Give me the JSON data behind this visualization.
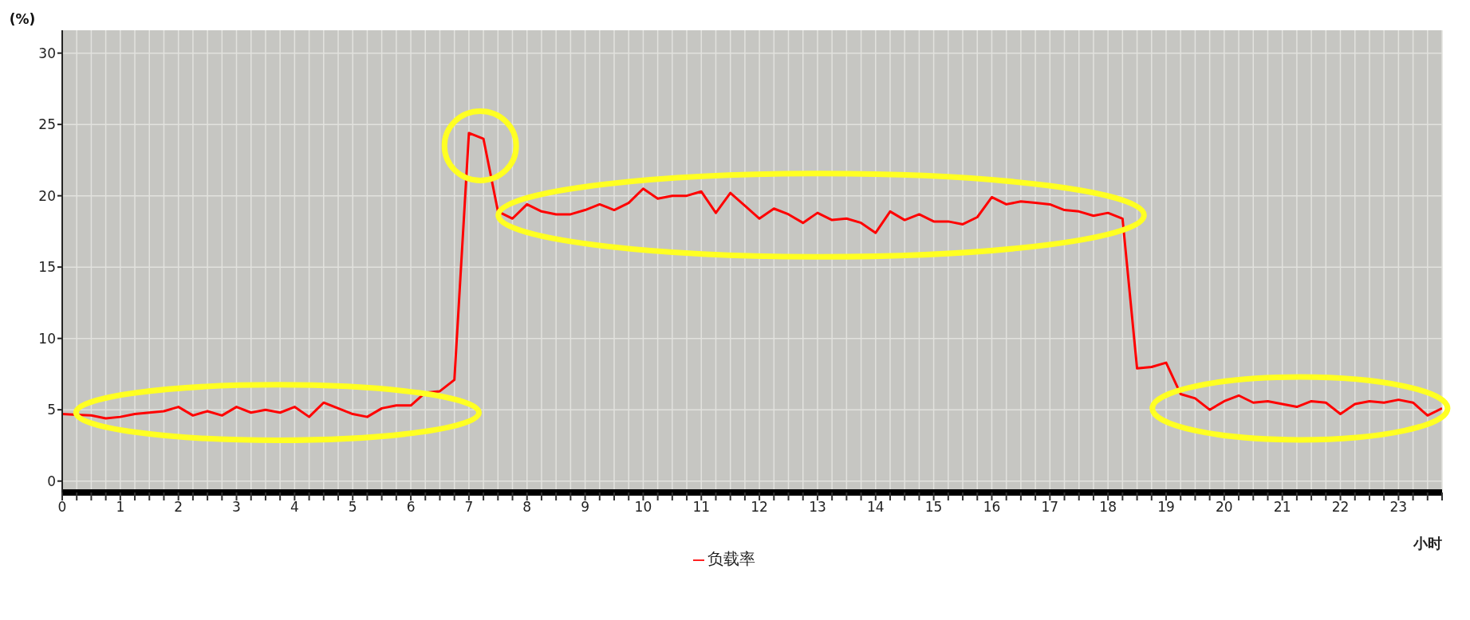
{
  "chart_data": {
    "type": "line",
    "ylabel": "(%)",
    "xlabel": "小时",
    "legend": "bottom",
    "grid": true,
    "marker": "none",
    "line_style": "solid",
    "xlim": [
      0,
      23.75
    ],
    "ylim": [
      -0.8,
      31.6
    ],
    "yticks": [
      0,
      5,
      10,
      15,
      20,
      25,
      30
    ],
    "xticks": [
      0,
      {
        "value": 0.25,
        "label": null
      },
      {
        "value": 0.5,
        "label": null
      },
      {
        "value": 0.75,
        "label": null
      },
      1,
      {
        "value": 1.25,
        "label": null
      },
      {
        "value": 1.5,
        "label": null
      },
      {
        "value": 1.75,
        "label": null
      },
      2,
      {
        "value": 2.25,
        "label": null
      },
      {
        "value": 2.5,
        "label": null
      },
      {
        "value": 2.75,
        "label": null
      },
      3,
      {
        "value": 3.25,
        "label": null
      },
      {
        "value": 3.5,
        "label": null
      },
      {
        "value": 3.75,
        "label": null
      },
      4,
      {
        "value": 4.25,
        "label": null
      },
      {
        "value": 4.5,
        "label": null
      },
      {
        "value": 4.75,
        "label": null
      },
      5,
      {
        "value": 5.25,
        "label": null
      },
      {
        "value": 5.5,
        "label": null
      },
      {
        "value": 5.75,
        "label": null
      },
      6,
      {
        "value": 6.25,
        "label": null
      },
      {
        "value": 6.5,
        "label": null
      },
      {
        "value": 6.75,
        "label": null
      },
      7,
      {
        "value": 7.25,
        "label": null
      },
      {
        "value": 7.5,
        "label": null
      },
      {
        "value": 7.75,
        "label": null
      },
      8,
      {
        "value": 8.25,
        "label": null
      },
      {
        "value": 8.5,
        "label": null
      },
      {
        "value": 8.75,
        "label": null
      },
      9,
      {
        "value": 9.25,
        "label": null
      },
      {
        "value": 9.5,
        "label": null
      },
      {
        "value": 9.75,
        "label": null
      },
      10,
      {
        "value": 10.25,
        "label": null
      },
      {
        "value": 10.5,
        "label": null
      },
      {
        "value": 10.75,
        "label": null
      },
      11,
      {
        "value": 11.25,
        "label": null
      },
      {
        "value": 11.5,
        "label": null
      },
      {
        "value": 11.75,
        "label": null
      },
      12,
      {
        "value": 12.25,
        "label": null
      },
      {
        "value": 12.5,
        "label": null
      },
      {
        "value": 12.75,
        "label": null
      },
      13,
      {
        "value": 13.25,
        "label": null
      },
      {
        "value": 13.5,
        "label": null
      },
      {
        "value": 13.75,
        "label": null
      },
      14,
      {
        "value": 14.25,
        "label": null
      },
      {
        "value": 14.5,
        "label": null
      },
      {
        "value": 14.75,
        "label": null
      },
      15,
      {
        "value": 15.25,
        "label": null
      },
      {
        "value": 15.5,
        "label": null
      },
      {
        "value": 15.75,
        "label": null
      },
      16,
      {
        "value": 16.25,
        "label": null
      },
      {
        "value": 16.5,
        "label": null
      },
      {
        "value": 16.75,
        "label": null
      },
      17,
      {
        "value": 17.25,
        "label": null
      },
      {
        "value": 17.5,
        "label": null
      },
      {
        "value": 17.75,
        "label": null
      },
      18,
      {
        "value": 18.25,
        "label": null
      },
      {
        "value": 18.5,
        "label": null
      },
      {
        "value": 18.75,
        "label": null
      },
      19,
      {
        "value": 19.25,
        "label": null
      },
      {
        "value": 19.5,
        "label": null
      },
      {
        "value": 19.75,
        "label": null
      },
      20,
      {
        "value": 20.25,
        "label": null
      },
      {
        "value": 20.5,
        "label": null
      },
      {
        "value": 20.75,
        "label": null
      },
      21,
      {
        "value": 21.25,
        "label": null
      },
      {
        "value": 21.5,
        "label": null
      },
      {
        "value": 21.75,
        "label": null
      },
      22,
      {
        "value": 22.25,
        "label": null
      },
      {
        "value": 22.5,
        "label": null
      },
      {
        "value": 22.75,
        "label": null
      },
      23,
      {
        "value": 23.25,
        "label": null
      },
      {
        "value": 23.5,
        "label": null
      },
      {
        "value": 23.75,
        "label": null
      }
    ],
    "x": [
      0,
      0.25,
      0.5,
      0.75,
      1,
      1.25,
      1.5,
      1.75,
      2,
      2.25,
      2.5,
      2.75,
      3,
      3.25,
      3.5,
      3.75,
      4,
      4.25,
      4.5,
      4.75,
      5,
      5.25,
      5.5,
      5.75,
      6,
      6.25,
      6.5,
      6.75,
      7,
      7.25,
      7.5,
      7.75,
      8,
      8.25,
      8.5,
      8.75,
      9,
      9.25,
      9.5,
      9.75,
      10,
      10.25,
      10.5,
      10.75,
      11,
      11.25,
      11.5,
      11.75,
      12,
      12.25,
      12.5,
      12.75,
      13,
      13.25,
      13.5,
      13.75,
      14,
      14.25,
      14.5,
      14.75,
      15,
      15.25,
      15.5,
      15.75,
      16,
      16.25,
      16.5,
      16.75,
      17,
      17.25,
      17.5,
      17.75,
      18,
      18.25,
      18.5,
      18.75,
      19,
      19.25,
      19.5,
      19.75,
      20,
      20.25,
      20.5,
      20.75,
      21,
      21.25,
      21.5,
      21.75,
      22,
      22.25,
      22.5,
      22.75,
      23,
      23.25,
      23.5,
      23.75
    ],
    "series": [
      {
        "name": "负载率",
        "color": "#ff0000",
        "values": [
          4.7,
          4.65,
          4.6,
          4.4,
          4.5,
          4.7,
          4.8,
          4.9,
          5.2,
          4.6,
          4.9,
          4.6,
          5.2,
          4.8,
          5.0,
          4.8,
          5.2,
          4.5,
          5.5,
          5.1,
          4.7,
          4.5,
          5.1,
          5.3,
          5.3,
          6.2,
          6.3,
          7.1,
          24.4,
          24.0,
          18.9,
          18.4,
          19.4,
          18.9,
          18.7,
          18.7,
          19.0,
          19.4,
          19.0,
          19.5,
          20.5,
          19.8,
          20.0,
          20.0,
          20.3,
          18.8,
          20.2,
          19.3,
          18.4,
          19.1,
          18.7,
          18.1,
          18.8,
          18.3,
          18.4,
          18.1,
          17.4,
          18.9,
          18.3,
          18.7,
          18.2,
          18.2,
          18.0,
          18.5,
          19.9,
          19.4,
          19.6,
          19.5,
          19.4,
          19.0,
          18.9,
          18.6,
          18.8,
          18.4,
          7.9,
          8.0,
          8.3,
          6.1,
          5.8,
          5.0,
          5.6,
          6.0,
          5.5,
          5.6,
          5.4,
          5.2,
          5.6,
          5.5,
          4.7,
          5.4,
          5.6,
          5.5,
          5.7,
          5.5,
          4.6,
          5.1
        ]
      }
    ]
  }
}
